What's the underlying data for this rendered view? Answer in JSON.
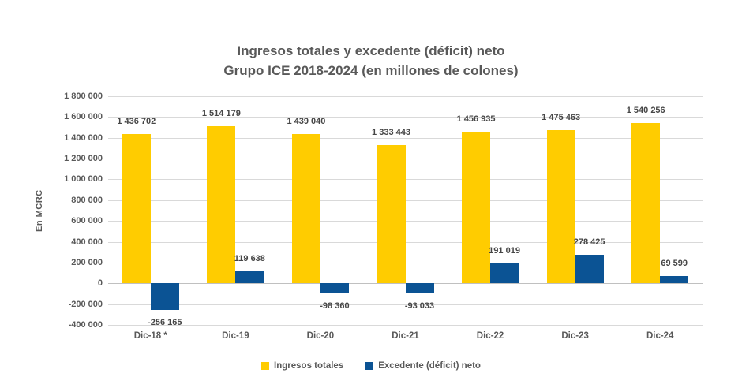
{
  "chart_data": {
    "type": "bar",
    "title": "Ingresos totales y excedente (déficit) neto",
    "subtitle": "Grupo ICE 2018-2024 (en millones de colones)",
    "ylabel": "En MCRC",
    "ylim": [
      -400000,
      1800000
    ],
    "ytick_step": 200000,
    "grid": true,
    "legend_position": "bottom",
    "categories": [
      "Dic-18 *",
      "Dic-19",
      "Dic-20",
      "Dic-21",
      "Dic-22",
      "Dic-23",
      "Dic-24"
    ],
    "yticks": {
      "values": [
        1800000,
        1600000,
        1400000,
        1200000,
        1000000,
        800000,
        600000,
        400000,
        200000,
        0,
        -200000,
        -400000
      ],
      "labels": [
        "1 800 000",
        "1 600 000",
        "1 400 000",
        "1 200 000",
        "1 000 000",
        "800 000",
        "600 000",
        "400 000",
        "200 000",
        "0",
        "-200 000",
        "-400 000"
      ]
    },
    "series": [
      {
        "name": "Ingresos totales",
        "color": "#FFCC00",
        "values": [
          1436702,
          1514179,
          1439040,
          1333443,
          1456935,
          1475463,
          1540256
        ],
        "labels": [
          "1 436 702",
          "1 514 179",
          "1 439 040",
          "1 333 443",
          "1 456 935",
          "1 475 463",
          "1 540 256"
        ]
      },
      {
        "name": "Excedente (déficit) neto",
        "color": "#0B5394",
        "values": [
          -256165,
          119638,
          -98360,
          -93033,
          191019,
          278425,
          69599
        ],
        "labels": [
          "-256 165",
          "119 638",
          "-98 360",
          "-93 033",
          "191 019",
          "278 425",
          "69 599"
        ]
      }
    ],
    "colors": {
      "grid": "#d9d9d9",
      "text": "#595959",
      "data_label": "#464646"
    }
  }
}
